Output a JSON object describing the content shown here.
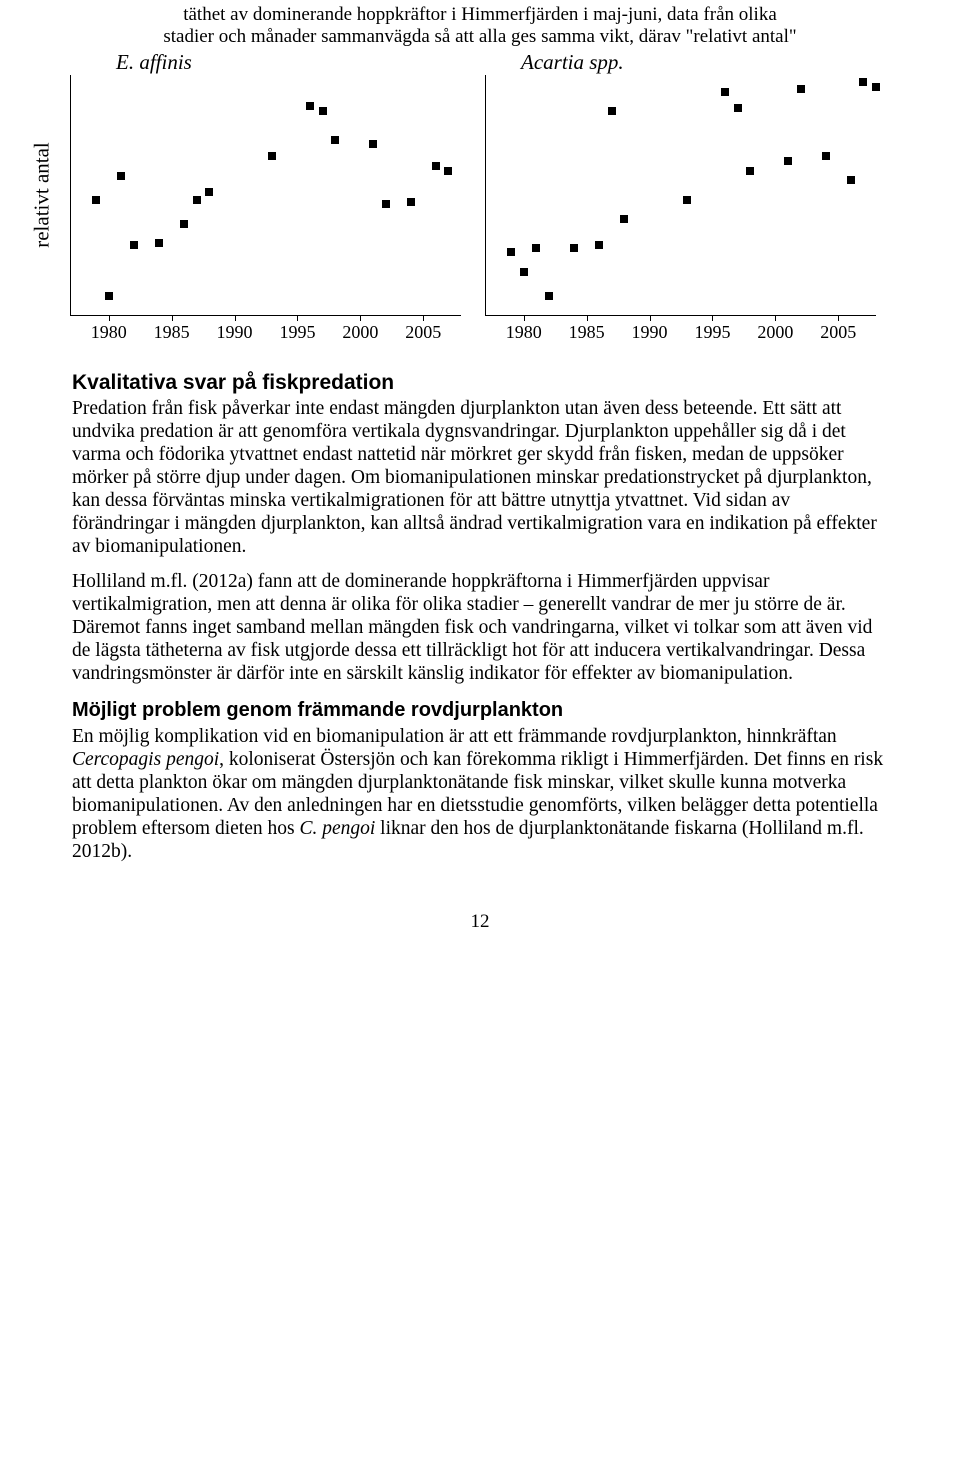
{
  "figure": {
    "title_line1": "täthet av dominerande hoppkräftor i Himmerfjärden i maj-juni, data från olika",
    "title_line2": "stadier och månader sammanvägda så att alla ges samma vikt, därav \"relativt antal\"",
    "yaxis_label": "relativt antal",
    "left": {
      "label": "E. affinis",
      "type": "scatter",
      "xlim": [
        1977,
        2008
      ],
      "ylim": [
        0,
        1.0
      ],
      "xticks": [
        1980,
        1985,
        1990,
        1995,
        2000,
        2005
      ],
      "marker_style": "square",
      "marker_size": 8,
      "marker_color": "#000000",
      "background_color": "#ffffff",
      "points": [
        {
          "x": 1979,
          "y": 0.48
        },
        {
          "x": 1980,
          "y": 0.08
        },
        {
          "x": 1981,
          "y": 0.58
        },
        {
          "x": 1982,
          "y": 0.29
        },
        {
          "x": 1984,
          "y": 0.3
        },
        {
          "x": 1986,
          "y": 0.38
        },
        {
          "x": 1987,
          "y": 0.48
        },
        {
          "x": 1988,
          "y": 0.51
        },
        {
          "x": 1993,
          "y": 0.66
        },
        {
          "x": 1996,
          "y": 0.87
        },
        {
          "x": 1997,
          "y": 0.85
        },
        {
          "x": 1998,
          "y": 0.73
        },
        {
          "x": 2001,
          "y": 0.71
        },
        {
          "x": 2002,
          "y": 0.46
        },
        {
          "x": 2004,
          "y": 0.47
        },
        {
          "x": 2006,
          "y": 0.62
        },
        {
          "x": 2007,
          "y": 0.6
        }
      ]
    },
    "right": {
      "label": "Acartia spp.",
      "type": "scatter",
      "xlim": [
        1977,
        2008
      ],
      "ylim": [
        0,
        1.0
      ],
      "xticks": [
        1980,
        1985,
        1990,
        1995,
        2000,
        2005
      ],
      "marker_style": "square",
      "marker_size": 8,
      "marker_color": "#000000",
      "background_color": "#ffffff",
      "points": [
        {
          "x": 1979,
          "y": 0.26
        },
        {
          "x": 1980,
          "y": 0.18
        },
        {
          "x": 1981,
          "y": 0.28
        },
        {
          "x": 1982,
          "y": 0.08
        },
        {
          "x": 1984,
          "y": 0.28
        },
        {
          "x": 1986,
          "y": 0.29
        },
        {
          "x": 1987,
          "y": 0.85
        },
        {
          "x": 1988,
          "y": 0.4
        },
        {
          "x": 1993,
          "y": 0.48
        },
        {
          "x": 1996,
          "y": 0.93
        },
        {
          "x": 1997,
          "y": 0.86
        },
        {
          "x": 1998,
          "y": 0.6
        },
        {
          "x": 2001,
          "y": 0.64
        },
        {
          "x": 2002,
          "y": 0.94
        },
        {
          "x": 2004,
          "y": 0.66
        },
        {
          "x": 2006,
          "y": 0.56
        },
        {
          "x": 2007,
          "y": 0.97
        },
        {
          "x": 2008,
          "y": 0.95
        }
      ]
    }
  },
  "sections": {
    "h2_1": "Kvalitativa svar på fiskpredation",
    "p1": "Predation från fisk påverkar inte endast mängden djurplankton utan även dess beteende. Ett sätt att undvika predation är att genomföra vertikala dygnsvandringar. Djurplankton uppehåller sig då i det varma och födorika ytvattnet endast nattetid när mörkret ger skydd från fisken, medan de uppsöker mörker på större djup under dagen. Om biomanipulationen minskar predationstrycket på djurplankton, kan dessa förväntas minska vertikalmigrationen för att bättre utnyttja ytvattnet. Vid sidan av förändringar i mängden djurplankton, kan alltså ändrad vertikalmigration vara en indikation på effekter av biomanipulationen.",
    "p2": "Holliland m.fl. (2012a) fann att de dominerande hoppkräftorna i Himmerfjärden uppvisar vertikalmigration, men att denna är olika för olika stadier – generellt vandrar de mer ju större de är. Däremot fanns inget samband mellan mängden fisk och vandringarna, vilket vi tolkar som att även vid de lägsta tätheterna av fisk utgjorde dessa ett tillräckligt hot för att inducera vertikalvandringar. Dessa vandringsmönster är därför inte en särskilt känslig indikator för effekter av biomanipulation.",
    "h3_1": "Möjligt problem genom främmande rovdjurplankton",
    "p3_a": "En möjlig komplikation vid en biomanipulation är att ett främmande rovdjurplankton, hinnkräftan ",
    "p3_i1": "Cercopagis pengoi",
    "p3_b": ", koloniserat Östersjön och kan förekomma rikligt i Himmerfjärden. Det finns en risk att detta plankton ökar om mängden djurplanktonätande fisk minskar, vilket skulle kunna motverka biomanipulationen. Av den anledningen har en dietsstudie genomförts, vilken belägger detta potentiella problem eftersom dieten hos ",
    "p3_i2": "C. pengoi",
    "p3_c": " liknar den hos de djurplanktonätande fiskarna (Holliland m.fl. 2012b)."
  },
  "page_number": "12"
}
